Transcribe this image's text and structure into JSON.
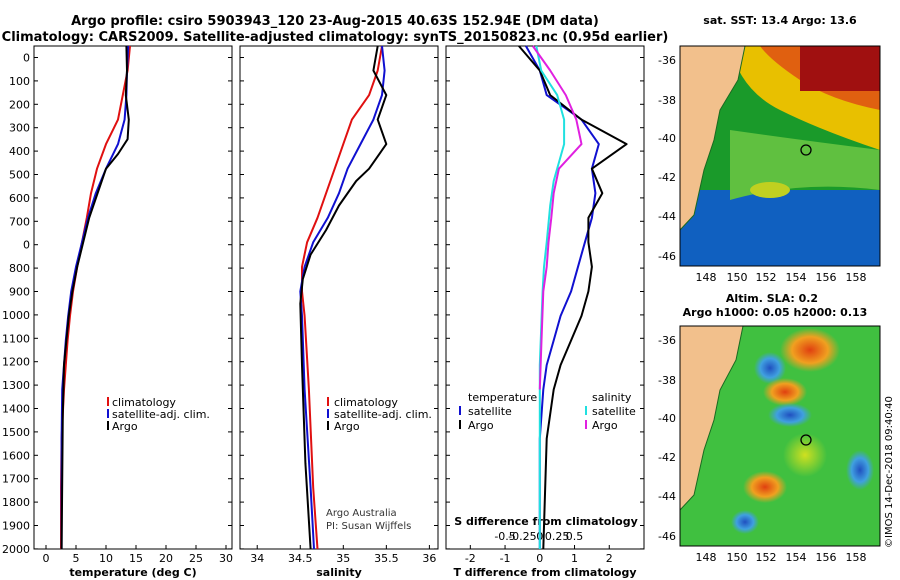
{
  "title": {
    "line1": "Argo profile: csiro 5903943_120 23-Aug-2015 40.63S 152.94E (DM data)",
    "line2": "Climatology: CARS2009. Satellite-adjusted climatology: synTS_20150823.nc (0.95d earlier)"
  },
  "colors": {
    "climatology": "#e01010",
    "satellite": "#1010d0",
    "argo": "#000000",
    "sat_salinity": "#20e0e0",
    "argo_salinity": "#e020e0"
  },
  "depth_ticks": [
    "0",
    "100",
    "200",
    "300",
    "400",
    "500",
    "600",
    "700",
    "0",
    "800",
    "900",
    "1000",
    "1100",
    "1200",
    "1300",
    "1400",
    "1500",
    "1600",
    "1700",
    "1800",
    "1900",
    "2000"
  ],
  "legend": {
    "climatology": "climatology",
    "satellite": "satellite-adj. clim.",
    "argo": "Argo"
  },
  "legend_diff": {
    "temperature": "temperature",
    "salinity": "salinity",
    "satellite": "satellite",
    "argo": "Argo"
  },
  "credit": {
    "line1": "Argo Australia",
    "line2": "PI: Susan Wijffels"
  },
  "sst_map": {
    "title": "sat. SST: 13.4 Argo: 13.6",
    "lat_ticks": [
      "-36",
      "-38",
      "-40",
      "-42",
      "-44",
      "-46"
    ],
    "lon_ticks": [
      "148",
      "150",
      "152",
      "154",
      "156",
      "158"
    ]
  },
  "sla_map": {
    "title1": "Altim. SLA: 0.2",
    "title2": "Argo h1000: 0.05 h2000: 0.13",
    "lat_ticks": [
      "-36",
      "-38",
      "-40",
      "-42",
      "-44",
      "-46"
    ],
    "lon_ticks": [
      "148",
      "150",
      "152",
      "154",
      "156",
      "158"
    ]
  },
  "stamp": "©IMOS 14-Dec-2018 09:40:40",
  "chart_data": [
    {
      "type": "line",
      "title": "Temperature profile",
      "xlabel": "temperature (deg C)",
      "ylabel": "depth",
      "xlim": [
        -2,
        31
      ],
      "ylim": [
        2050,
        0
      ],
      "xticks": [
        "0",
        "5",
        "10",
        "15",
        "20",
        "25",
        "30"
      ],
      "xtick_values": [
        0,
        5,
        10,
        15,
        20,
        25,
        30
      ],
      "series": [
        {
          "name": "climatology",
          "x": [
            14,
            13.6,
            12,
            10,
            8.5,
            7.5,
            6.8,
            6,
            5.2,
            4.5,
            4,
            3.6,
            3.3,
            3,
            2.8,
            2.6,
            2.5,
            2.5
          ],
          "depth": [
            0,
            100,
            300,
            400,
            500,
            600,
            700,
            800,
            900,
            1000,
            1100,
            1200,
            1300,
            1400,
            1500,
            1600,
            1800,
            2050
          ]
        },
        {
          "name": "satellite-adj. clim.",
          "x": [
            13.7,
            13.5,
            13.4,
            13.1,
            12,
            10,
            8.3,
            7,
            6,
            5,
            4.2,
            3.7,
            3.3,
            3,
            2.7,
            2.6,
            2.6
          ],
          "depth": [
            0,
            100,
            200,
            300,
            400,
            500,
            600,
            700,
            800,
            900,
            1000,
            1100,
            1200,
            1300,
            1400,
            1600,
            2050
          ]
        },
        {
          "name": "Argo",
          "x": [
            13.4,
            13.5,
            13.3,
            13.8,
            13.6,
            12,
            10,
            8.6,
            7.2,
            6.2,
            5.2,
            4.4,
            3.8,
            3.4,
            3,
            2.8,
            2.6
          ],
          "depth": [
            0,
            100,
            200,
            300,
            380,
            440,
            500,
            600,
            700,
            800,
            900,
            1000,
            1100,
            1200,
            1300,
            1500,
            2050
          ]
        }
      ]
    },
    {
      "type": "line",
      "title": "Salinity profile",
      "xlabel": "salinity",
      "ylabel": "depth",
      "xlim": [
        33.8,
        36.1
      ],
      "ylim": [
        2050,
        0
      ],
      "xticks": [
        "34",
        "34.5",
        "35",
        "35.5",
        "36"
      ],
      "xtick_values": [
        34,
        34.5,
        35,
        35.5,
        36
      ],
      "series": [
        {
          "name": "climatology",
          "x": [
            35.45,
            35.4,
            35.3,
            35.1,
            35.0,
            34.9,
            34.8,
            34.7,
            34.58,
            34.52,
            34.52,
            34.55,
            34.6,
            34.65,
            34.7
          ],
          "depth": [
            0,
            100,
            200,
            300,
            400,
            500,
            600,
            700,
            800,
            900,
            1000,
            1100,
            1400,
            1800,
            2050
          ]
        },
        {
          "name": "satellite-adj. clim.",
          "x": [
            35.45,
            35.48,
            35.45,
            35.35,
            35.2,
            35.05,
            34.95,
            34.82,
            34.65,
            34.55,
            34.5,
            34.52,
            34.55,
            34.62,
            34.66
          ],
          "depth": [
            0,
            100,
            200,
            300,
            400,
            500,
            600,
            700,
            800,
            900,
            1000,
            1100,
            1400,
            1800,
            2050
          ]
        },
        {
          "name": "Argo",
          "x": [
            35.4,
            35.35,
            35.5,
            35.4,
            35.5,
            35.3,
            35.15,
            34.95,
            34.8,
            34.62,
            34.53,
            34.5,
            34.52,
            34.56,
            34.62
          ],
          "depth": [
            0,
            100,
            200,
            300,
            400,
            500,
            550,
            650,
            750,
            850,
            950,
            1050,
            1300,
            1700,
            2050
          ]
        }
      ]
    },
    {
      "type": "line",
      "title": "Difference from climatology",
      "xlabel": "T difference from climatology",
      "xlabel2": "S difference from climatology",
      "xlim": [
        -2.7,
        3.0
      ],
      "ylim": [
        2050,
        0
      ],
      "xticks": [
        "-2",
        "-1",
        "0",
        "1",
        "2"
      ],
      "xtick_values": [
        -2,
        -1,
        0,
        1,
        2
      ],
      "xticks_S": [
        "-0.5",
        "-0.25",
        "0",
        "0.25",
        "0.5"
      ],
      "xtick_values_S": [
        -0.5,
        -0.25,
        0,
        0.25,
        0.5
      ],
      "series": [
        {
          "name": "T satellite",
          "x": [
            -0.4,
            0,
            0.2,
            1.2,
            1.7,
            1.5,
            1.6,
            1.5,
            1.3,
            1.1,
            0.9,
            0.6,
            0.4,
            0.2,
            0.1,
            0,
            0
          ],
          "depth": [
            0,
            100,
            200,
            300,
            400,
            500,
            600,
            700,
            800,
            900,
            1000,
            1100,
            1200,
            1300,
            1400,
            1600,
            2050
          ]
        },
        {
          "name": "T Argo",
          "x": [
            -0.6,
            0,
            0.3,
            1.2,
            2.5,
            1.5,
            1.8,
            1.4,
            1.4,
            1.5,
            1.4,
            1.2,
            0.9,
            0.6,
            0.4,
            0.2,
            0.1
          ],
          "depth": [
            0,
            100,
            200,
            300,
            400,
            500,
            600,
            700,
            800,
            900,
            1000,
            1100,
            1200,
            1300,
            1400,
            1600,
            2050
          ]
        },
        {
          "name": "S satellite",
          "x": [
            -0.1,
            0.04,
            0.5,
            0.7,
            0.7,
            0.4,
            0.3,
            0.2,
            0.12,
            0.08,
            0,
            0
          ],
          "depth": [
            0,
            100,
            200,
            300,
            400,
            550,
            650,
            800,
            900,
            1000,
            1300,
            2050
          ]
        },
        {
          "name": "S Argo",
          "x": [
            -0.2,
            0.3,
            0.75,
            1.05,
            1.2,
            0.55,
            0.4,
            0.33,
            0.25,
            0.2,
            0.1,
            0.05,
            0
          ],
          "depth": [
            0,
            100,
            200,
            300,
            400,
            500,
            600,
            700,
            800,
            900,
            1000,
            1200,
            1400
          ]
        }
      ]
    }
  ]
}
